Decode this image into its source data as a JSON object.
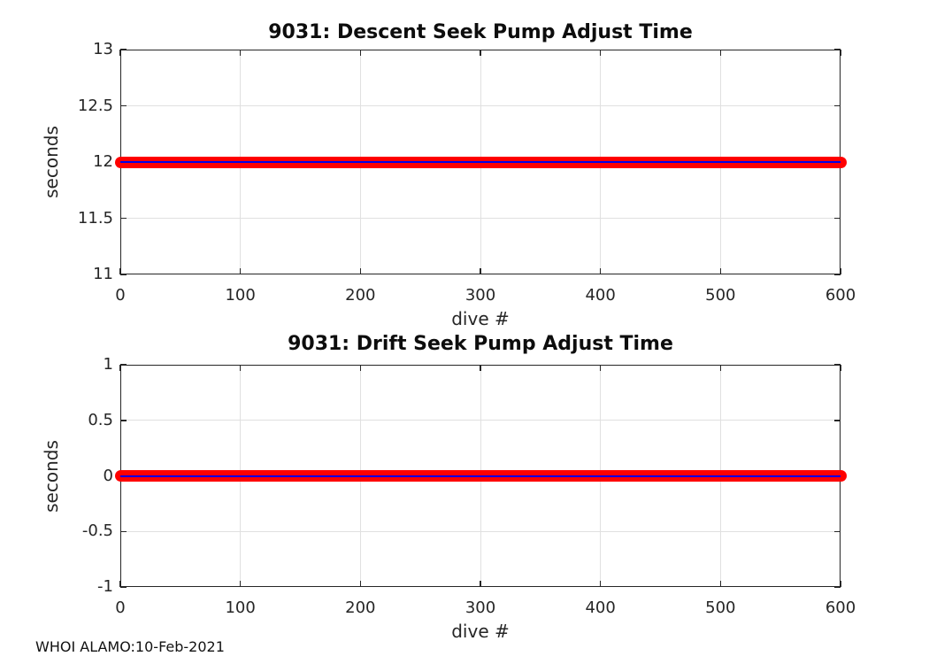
{
  "figure": {
    "background": "#ffffff",
    "footer_text": "WHOI ALAMO:10-Feb-2021"
  },
  "style": {
    "axis_color": "#262626",
    "grid_color": "#e0e0e0",
    "tick_text_color": "#262626",
    "title_color": "#0d0d0d",
    "marker_color": "#ff0000",
    "core_line_color": "#0000e6"
  },
  "chart_data": [
    {
      "type": "line",
      "title": "9031: Descent Seek Pump Adjust Time",
      "xlabel": "dive #",
      "ylabel": "seconds",
      "xlim": [
        0,
        600
      ],
      "ylim": [
        11,
        13
      ],
      "xticks": [
        0,
        100,
        200,
        300,
        400,
        500,
        600
      ],
      "yticks": [
        11,
        11.5,
        12,
        12.5,
        13
      ],
      "grid": true,
      "legend": null,
      "series": [
        {
          "name": "descent-seek-pump-adjust-time",
          "marker": "filled-circle",
          "marker_color": "#ff0000",
          "line_color": "#0000e6",
          "x_start": 0,
          "x_end": 600,
          "y_constant": 12
        }
      ]
    },
    {
      "type": "line",
      "title": "9031: Drift Seek Pump Adjust Time",
      "xlabel": "dive #",
      "ylabel": "seconds",
      "xlim": [
        0,
        600
      ],
      "ylim": [
        -1,
        1
      ],
      "xticks": [
        0,
        100,
        200,
        300,
        400,
        500,
        600
      ],
      "yticks": [
        -1,
        -0.5,
        0,
        0.5,
        1
      ],
      "grid": true,
      "legend": null,
      "series": [
        {
          "name": "drift-seek-pump-adjust-time",
          "marker": "filled-circle",
          "marker_color": "#ff0000",
          "line_color": "#0000e6",
          "x_start": 0,
          "x_end": 600,
          "y_constant": 0
        }
      ]
    }
  ]
}
